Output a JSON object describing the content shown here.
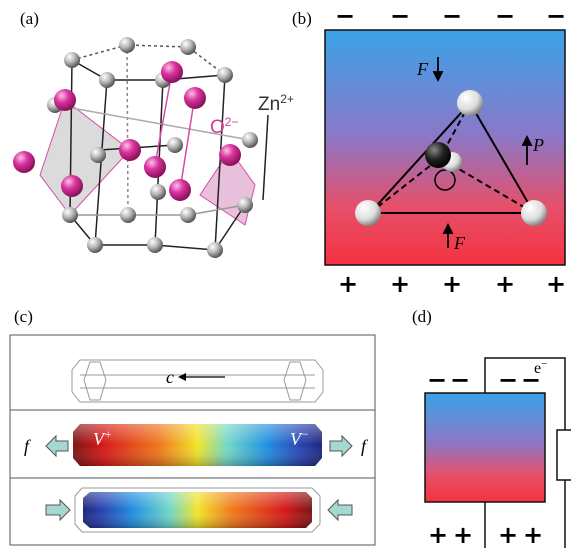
{
  "panels": [
    {
      "label": "(a)",
      "ion_labels": [
        {
          "base": "O",
          "sup": "2−"
        },
        {
          "base": "Zn",
          "sup": "2+"
        }
      ]
    },
    {
      "label": "(b)",
      "top_charges": [
        "−",
        "−",
        "−",
        "−",
        "−"
      ],
      "bottom_charges": [
        "+",
        "+",
        "+",
        "+",
        "+"
      ],
      "force_top": "F",
      "polarization": "P",
      "force_bottom": "F"
    },
    {
      "label": "(c)",
      "axis_label": "c",
      "force_labels": [
        "f",
        "f"
      ],
      "potential_labels": [
        {
          "base": "V",
          "sup": "+"
        },
        {
          "base": "V",
          "sup": "−"
        }
      ]
    },
    {
      "label": "(d)",
      "top_charges": [
        "−",
        "−",
        "−",
        "−"
      ],
      "bottom_charges": [
        "+",
        "+",
        "+",
        "+"
      ],
      "electron": {
        "base": "e",
        "sup": "−"
      }
    }
  ]
}
